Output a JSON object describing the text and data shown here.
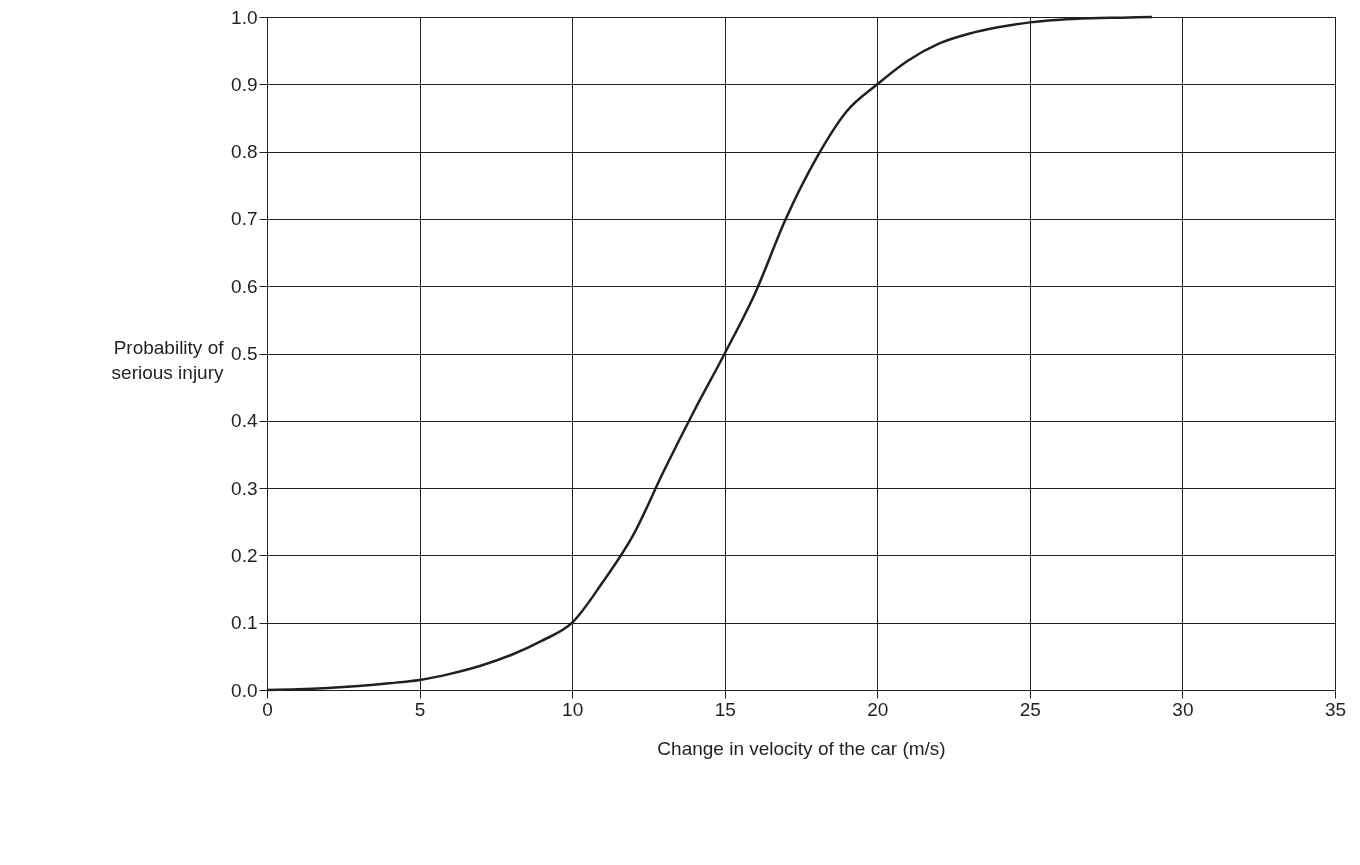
{
  "chart_data": {
    "type": "line",
    "xlabel": "Change in velocity of the car (m/s)",
    "ylabel": "Probability of serious injury",
    "x": [
      0,
      1,
      2,
      3,
      4,
      5,
      6,
      7,
      8,
      9,
      10,
      11,
      12,
      13,
      14,
      15,
      16,
      17,
      18,
      19,
      20,
      21,
      22,
      23,
      24,
      25,
      26,
      27,
      28,
      29
    ],
    "series": [
      {
        "color": "#231f20",
        "values": [
          0,
          0.001,
          0.003,
          0.006,
          0.01,
          0.015,
          0.024,
          0.036,
          0.052,
          0.073,
          0.1,
          0.16,
          0.23,
          0.325,
          0.415,
          0.5,
          0.59,
          0.7,
          0.79,
          0.86,
          0.9,
          0.935,
          0.96,
          0.975,
          0.985,
          0.992,
          0.996,
          0.998,
          0.999,
          1.0
        ]
      }
    ],
    "xlim": [
      0,
      35
    ],
    "xticks": [
      0,
      5,
      10,
      15,
      20,
      25,
      30,
      35
    ],
    "ylim": [
      0,
      1
    ],
    "yticks": [
      {
        "value": 0,
        "label": "0.0"
      },
      0.1,
      0.2,
      0.3,
      0.4,
      0.5,
      0.6,
      0.7,
      0.8,
      0.9,
      {
        "value": 1,
        "label": "1.0"
      }
    ],
    "grid": true,
    "marker": "none",
    "line_style": "solid"
  }
}
